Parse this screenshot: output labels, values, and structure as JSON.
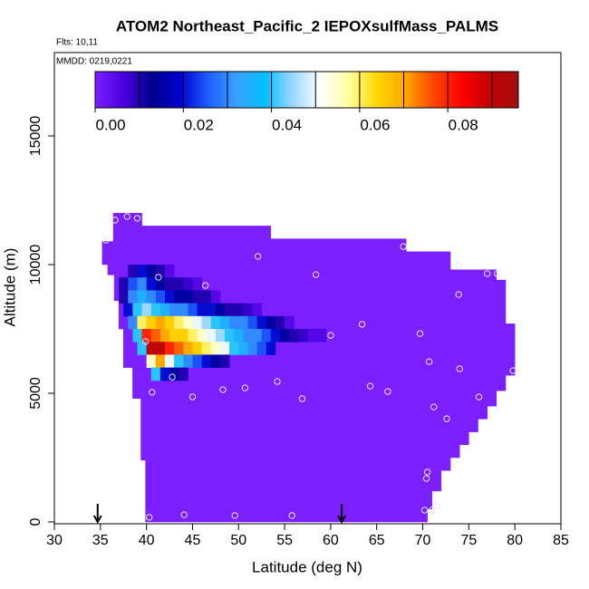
{
  "chart_data": {
    "type": "curtain",
    "title": "ATOM2 Northeast_Pacific_2 IEPOXsulfMass_PALMS",
    "flights": "Flts: 10,11",
    "dates": "MMDD: 0219,0221",
    "xlabel": "Latitude (deg N)",
    "ylabel": "Altitude (m)",
    "xlim": [
      30,
      85
    ],
    "xticks": [
      30,
      35,
      40,
      45,
      50,
      55,
      60,
      65,
      70,
      75,
      80,
      85
    ],
    "ylim": [
      -70,
      18240
    ],
    "yticks": [
      0,
      5000,
      10000,
      15000
    ],
    "clim": [
      0,
      0.096
    ],
    "cticks": [
      {
        "value": 0,
        "label": "0.00"
      },
      0.02,
      0.04,
      0.06,
      0.08
    ],
    "cdividers": [
      0.01,
      0.02,
      0.03,
      0.04,
      0.05,
      0.06,
      0.07,
      0.08,
      0.09
    ],
    "colors": [
      "#7b1fff",
      "#4b00e0",
      "#00008b",
      "#0000cd",
      "#1e5cff",
      "#3aa0ff",
      "#00bfff",
      "#9ad8ff",
      "#ffffff",
      "#ffffa0",
      "#ffd700",
      "#ffa500",
      "#ff4500",
      "#ff0000",
      "#c00000",
      "#a01010"
    ],
    "domain": {
      "value": 0,
      "lat": [
        39.9,
        39.9,
        39.4,
        39.4,
        38.5,
        38.5,
        37.5,
        37.5,
        37,
        37,
        36.5,
        36.5,
        35.8,
        35.8,
        35.2,
        35.2,
        36.4,
        36.4,
        39.5,
        39.5,
        53.5,
        53.5,
        68.2,
        68.2,
        73,
        73,
        78,
        78,
        79,
        79,
        80,
        80,
        79,
        79,
        78,
        78,
        77,
        77,
        76,
        76,
        75,
        75,
        74,
        74,
        73,
        73,
        72,
        72,
        71,
        71,
        70.5,
        70.5
      ],
      "alt": [
        0,
        2400,
        2400,
        4800,
        4800,
        6000,
        6000,
        7500,
        7500,
        8600,
        8600,
        9600,
        9600,
        10000,
        10000,
        10900,
        10900,
        12000,
        12000,
        11500,
        11500,
        11000,
        11000,
        10500,
        10500,
        9800,
        9800,
        9400,
        9400,
        7700,
        7700,
        5700,
        5700,
        5100,
        5100,
        4500,
        4500,
        4000,
        4000,
        3500,
        3500,
        3000,
        3000,
        2500,
        2500,
        2000,
        2000,
        1200,
        1200,
        500,
        500,
        0
      ]
    },
    "plume": [
      {
        "alt": 9750,
        "lat_start": 38,
        "values": [
          0.01,
          0.02,
          0.015,
          0.01,
          0.005
        ]
      },
      {
        "alt": 9250,
        "lat_start": 37,
        "values": [
          0.01,
          0.025,
          0.03,
          0.02,
          0.015,
          0.01,
          0.01,
          0.008,
          0.005
        ]
      },
      {
        "alt": 8750,
        "lat_start": 37,
        "values": [
          0.01,
          0.03,
          0.035,
          0.03,
          0.025,
          0.02,
          0.015,
          0.015,
          0.01,
          0.01,
          0.005
        ]
      },
      {
        "alt": 8250,
        "lat_start": 37.5,
        "values": [
          0.02,
          0.04,
          0.045,
          0.04,
          0.035,
          0.03,
          0.03,
          0.025,
          0.02,
          0.02,
          0.015,
          0.01,
          0.01,
          0.008,
          0.005
        ]
      },
      {
        "alt": 7750,
        "lat_start": 38,
        "values": [
          0.03,
          0.06,
          0.065,
          0.07,
          0.065,
          0.06,
          0.055,
          0.05,
          0.045,
          0.04,
          0.035,
          0.03,
          0.03,
          0.025,
          0.02,
          0.015,
          0.01,
          0.005
        ]
      },
      {
        "alt": 7250,
        "lat_start": 38.5,
        "values": [
          0.04,
          0.08,
          0.075,
          0.07,
          0.065,
          0.065,
          0.06,
          0.055,
          0.05,
          0.045,
          0.04,
          0.035,
          0.03,
          0.03,
          0.025,
          0.02,
          0.015,
          0.01,
          0.008,
          0.005,
          0.005
        ]
      },
      {
        "alt": 6750,
        "lat_start": 39,
        "values": [
          0.04,
          0.09,
          0.09,
          0.08,
          0.075,
          0.07,
          0.065,
          0.06,
          0.055,
          0.05,
          0.04,
          0.035,
          0.03,
          0.025,
          0.02
        ]
      },
      {
        "alt": 6250,
        "lat_start": 40,
        "values": [
          0.055,
          0.07,
          0.05,
          0.04,
          0.03,
          0.025,
          0.02,
          0.015,
          0.01
        ]
      },
      {
        "alt": 5750,
        "lat_start": 40.5,
        "values": [
          0.04,
          0.02,
          0.015,
          0.01
        ]
      }
    ],
    "points": {
      "lat": [
        36.6,
        37.9,
        39.0,
        35.6,
        52.1,
        67.9,
        73.9,
        41.3,
        58.4,
        77.0,
        78.1,
        46.4,
        73.9,
        63.4,
        60.0,
        69.7,
        39.9,
        70.7,
        42.8,
        79.8,
        74.0,
        54.2,
        64.3,
        66.2,
        48.3,
        50.7,
        40.6,
        45.0,
        56.9,
        76.1,
        71.2,
        72.6,
        70.5,
        70.4,
        71.6,
        71.0,
        70.2,
        40.3,
        44.1,
        49.6,
        55.8
      ],
      "alt": [
        11730,
        11870,
        11800,
        10950,
        10320,
        10700,
        9960,
        9510,
        9610,
        9650,
        9650,
        9190,
        8840,
        7680,
        7250,
        7320,
        7010,
        6230,
        5630,
        5880,
        5950,
        5460,
        5280,
        5070,
        5140,
        5210,
        5040,
        4860,
        4790,
        4860,
        4470,
        4010,
        1940,
        1690,
        630,
        460,
        460,
        180,
        280,
        250,
        250
      ]
    },
    "arrows": [
      34.7,
      61.2
    ]
  }
}
